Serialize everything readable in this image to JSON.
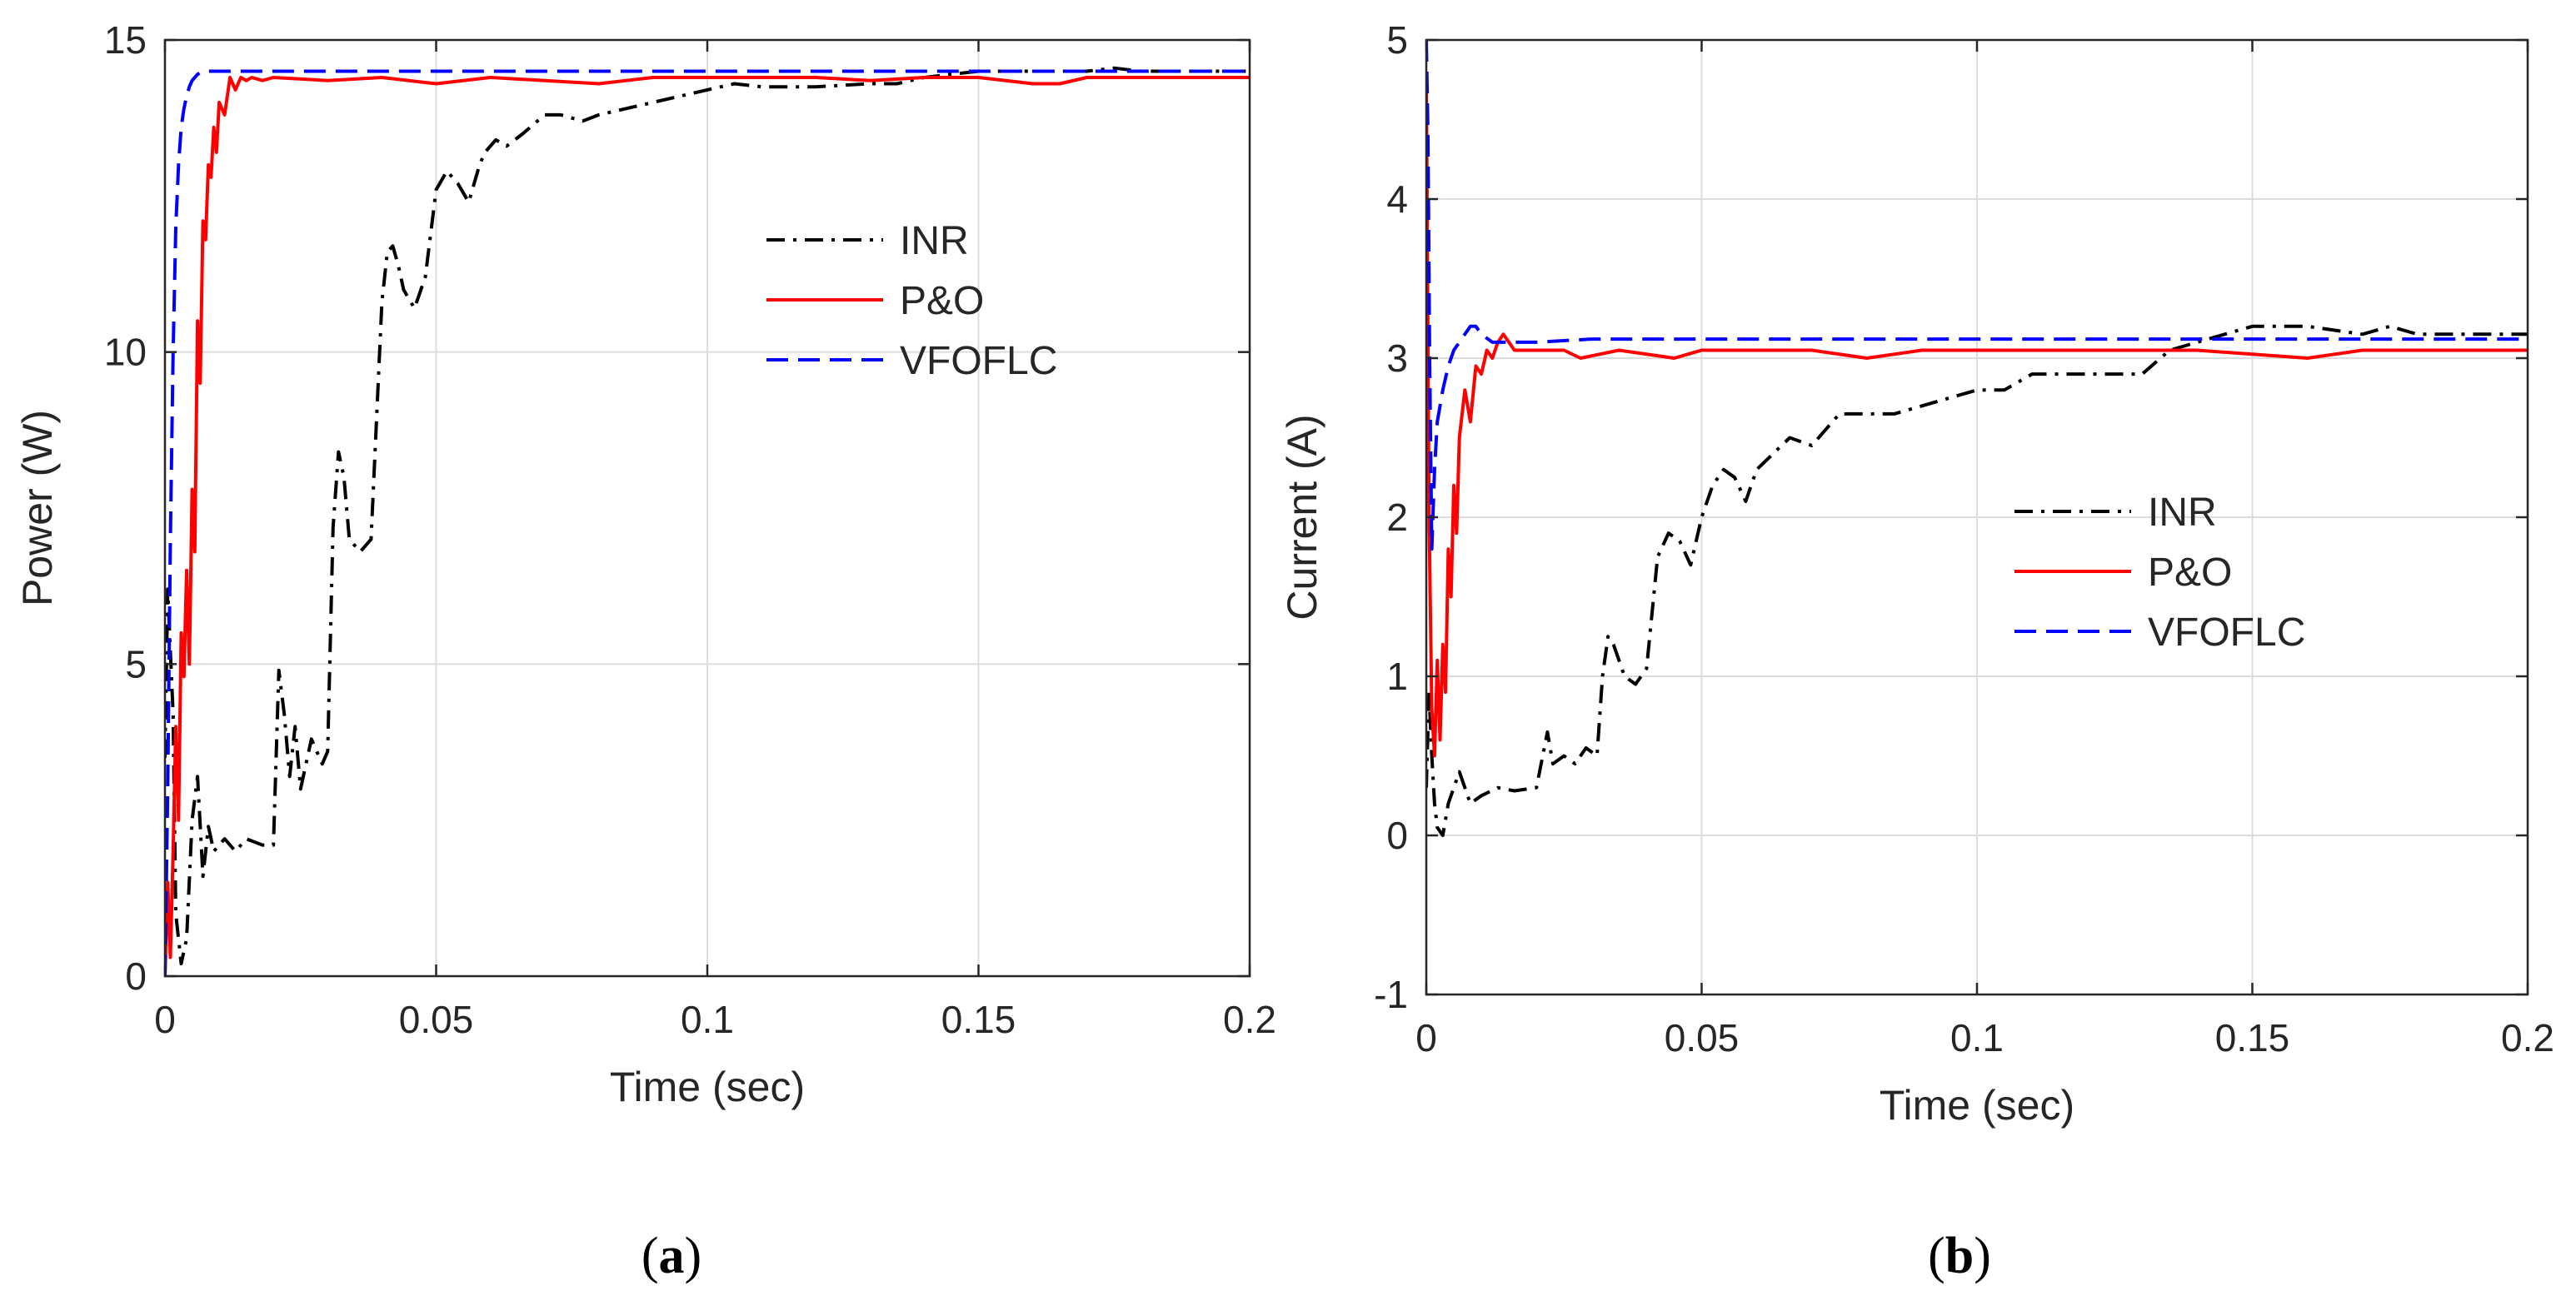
{
  "chart_data": [
    {
      "type": "line",
      "panel_label": "a",
      "xlabel": "Time (sec)",
      "ylabel": "Power (W)",
      "xlim": [
        0,
        0.2
      ],
      "ylim": [
        0,
        15
      ],
      "xticks": [
        0,
        0.05,
        0.1,
        0.15,
        0.2
      ],
      "xtick_labels": [
        "0",
        "0.05",
        "0.1",
        "0.15",
        "0.2"
      ],
      "yticks": [
        0,
        5,
        10,
        15
      ],
      "ytick_labels": [
        "0",
        "5",
        "10",
        "15"
      ],
      "grid": true,
      "legend_position": "upper-right",
      "series": [
        {
          "name": "INR",
          "color": "#000000",
          "style": "dashdot",
          "x": [
            0,
            0.0005,
            0.001,
            0.0015,
            0.002,
            0.003,
            0.004,
            0.005,
            0.006,
            0.007,
            0.008,
            0.009,
            0.011,
            0.013,
            0.015,
            0.018,
            0.02,
            0.021,
            0.022,
            0.023,
            0.024,
            0.025,
            0.027,
            0.029,
            0.03,
            0.031,
            0.032,
            0.033,
            0.034,
            0.036,
            0.038,
            0.04,
            0.041,
            0.042,
            0.043,
            0.044,
            0.046,
            0.048,
            0.05,
            0.052,
            0.054,
            0.056,
            0.058,
            0.059,
            0.061,
            0.063,
            0.066,
            0.07,
            0.073,
            0.077,
            0.08,
            0.085,
            0.09,
            0.095,
            0.1,
            0.105,
            0.11,
            0.12,
            0.13,
            0.135,
            0.14,
            0.145,
            0.15,
            0.16,
            0.17,
            0.175,
            0.18,
            0.2
          ],
          "values": [
            3.5,
            6.2,
            5.2,
            4.2,
            1.0,
            0.2,
            0.6,
            2.5,
            3.2,
            1.6,
            2.4,
            2.0,
            2.2,
            2.0,
            2.2,
            2.1,
            2.1,
            4.9,
            4.2,
            3.2,
            4.0,
            3.0,
            3.8,
            3.4,
            3.6,
            7.2,
            8.4,
            8.0,
            7.0,
            6.8,
            7.0,
            10.8,
            11.6,
            11.7,
            11.4,
            11.0,
            10.7,
            11.2,
            12.6,
            12.9,
            12.7,
            12.4,
            13.0,
            13.2,
            13.4,
            13.3,
            13.5,
            13.8,
            13.8,
            13.7,
            13.8,
            13.9,
            14.0,
            14.1,
            14.2,
            14.3,
            14.25,
            14.25,
            14.3,
            14.3,
            14.4,
            14.45,
            14.5,
            14.5,
            14.5,
            14.55,
            14.5,
            14.5
          ]
        },
        {
          "name": "P&O",
          "color": "#ff0000",
          "style": "solid",
          "x": [
            0,
            0.0005,
            0.001,
            0.0015,
            0.002,
            0.0025,
            0.003,
            0.0035,
            0.004,
            0.0045,
            0.005,
            0.0055,
            0.006,
            0.0065,
            0.007,
            0.0075,
            0.008,
            0.0085,
            0.009,
            0.0095,
            0.01,
            0.011,
            0.012,
            0.013,
            0.014,
            0.015,
            0.016,
            0.018,
            0.02,
            0.03,
            0.04,
            0.05,
            0.06,
            0.07,
            0.08,
            0.09,
            0.1,
            0.11,
            0.12,
            0.13,
            0.14,
            0.15,
            0.16,
            0.165,
            0.17,
            0.18,
            0.19,
            0.2
          ],
          "values": [
            0,
            1.5,
            0.3,
            2.0,
            4.0,
            2.5,
            5.5,
            4.8,
            6.5,
            5.0,
            7.8,
            6.8,
            10.5,
            9.5,
            12.1,
            11.8,
            13.0,
            12.8,
            13.6,
            13.2,
            14.0,
            13.8,
            14.4,
            14.2,
            14.4,
            14.35,
            14.4,
            14.35,
            14.4,
            14.35,
            14.4,
            14.3,
            14.4,
            14.35,
            14.3,
            14.4,
            14.4,
            14.4,
            14.4,
            14.35,
            14.4,
            14.4,
            14.3,
            14.3,
            14.4,
            14.4,
            14.4,
            14.4
          ]
        },
        {
          "name": "VFOFLC",
          "color": "#0000ff",
          "style": "dashed",
          "x": [
            0,
            0.0005,
            0.001,
            0.0015,
            0.002,
            0.0025,
            0.003,
            0.0035,
            0.004,
            0.0045,
            0.005,
            0.006,
            0.007,
            0.008,
            0.01,
            0.012,
            0.015,
            0.02,
            0.05,
            0.1,
            0.15,
            0.2
          ],
          "values": [
            0,
            3.0,
            7.0,
            10.0,
            12.0,
            13.0,
            13.6,
            13.9,
            14.1,
            14.25,
            14.35,
            14.45,
            14.5,
            14.5,
            14.5,
            14.5,
            14.5,
            14.5,
            14.5,
            14.5,
            14.5,
            14.5
          ]
        }
      ]
    },
    {
      "type": "line",
      "panel_label": "b",
      "xlabel": "Time (sec)",
      "ylabel": "Current (A)",
      "xlim": [
        0,
        0.2
      ],
      "ylim": [
        -1,
        5
      ],
      "xticks": [
        0,
        0.05,
        0.1,
        0.15,
        0.2
      ],
      "xtick_labels": [
        "0",
        "0.05",
        "0.1",
        "0.15",
        "0.2"
      ],
      "yticks": [
        -1,
        0,
        1,
        2,
        3,
        4,
        5
      ],
      "ytick_labels": [
        "-1",
        "0",
        "1",
        "2",
        "3",
        "4",
        "5"
      ],
      "grid": true,
      "legend_position": "center-right",
      "series": [
        {
          "name": "INR",
          "color": "#000000",
          "style": "dashdot",
          "x": [
            0,
            0.0005,
            0.001,
            0.0015,
            0.002,
            0.003,
            0.004,
            0.005,
            0.006,
            0.007,
            0.008,
            0.01,
            0.013,
            0.016,
            0.02,
            0.022,
            0.023,
            0.025,
            0.027,
            0.029,
            0.031,
            0.032,
            0.033,
            0.034,
            0.036,
            0.038,
            0.04,
            0.042,
            0.044,
            0.046,
            0.048,
            0.05,
            0.052,
            0.054,
            0.056,
            0.058,
            0.06,
            0.063,
            0.066,
            0.07,
            0.075,
            0.08,
            0.085,
            0.09,
            0.095,
            0.1,
            0.105,
            0.11,
            0.12,
            0.13,
            0.135,
            0.14,
            0.145,
            0.15,
            0.16,
            0.17,
            0.175,
            0.18,
            0.2
          ],
          "values": [
            0.3,
            0.9,
            0.5,
            0.2,
            0.05,
            0.0,
            0.2,
            0.3,
            0.4,
            0.3,
            0.2,
            0.25,
            0.3,
            0.28,
            0.3,
            0.65,
            0.45,
            0.5,
            0.45,
            0.55,
            0.5,
            1.0,
            1.25,
            1.2,
            1.0,
            0.95,
            1.05,
            1.75,
            1.9,
            1.85,
            1.7,
            2.0,
            2.2,
            2.3,
            2.25,
            2.1,
            2.3,
            2.4,
            2.5,
            2.45,
            2.65,
            2.65,
            2.65,
            2.7,
            2.75,
            2.8,
            2.8,
            2.9,
            2.9,
            2.9,
            3.05,
            3.1,
            3.15,
            3.2,
            3.2,
            3.15,
            3.2,
            3.15,
            3.15
          ]
        },
        {
          "name": "P&O",
          "color": "#ff0000",
          "style": "solid",
          "x": [
            0,
            0.0005,
            0.001,
            0.0015,
            0.002,
            0.0025,
            0.003,
            0.0035,
            0.004,
            0.0045,
            0.005,
            0.0055,
            0.006,
            0.007,
            0.008,
            0.009,
            0.01,
            0.011,
            0.012,
            0.013,
            0.014,
            0.016,
            0.02,
            0.025,
            0.028,
            0.035,
            0.045,
            0.05,
            0.07,
            0.08,
            0.09,
            0.1,
            0.12,
            0.14,
            0.16,
            0.17,
            0.18,
            0.2
          ],
          "values": [
            4.8,
            2.0,
            0.8,
            0.5,
            1.1,
            0.6,
            1.2,
            0.9,
            1.8,
            1.5,
            2.2,
            1.9,
            2.5,
            2.8,
            2.6,
            2.95,
            2.9,
            3.05,
            3.0,
            3.1,
            3.15,
            3.05,
            3.05,
            3.05,
            3.0,
            3.05,
            3.0,
            3.05,
            3.05,
            3.0,
            3.05,
            3.05,
            3.05,
            3.05,
            3.0,
            3.05,
            3.05,
            3.05
          ]
        },
        {
          "name": "VFOFLC",
          "color": "#0000ff",
          "style": "dashed",
          "x": [
            0,
            0.0003,
            0.0006,
            0.001,
            0.0015,
            0.002,
            0.003,
            0.004,
            0.005,
            0.006,
            0.007,
            0.008,
            0.009,
            0.01,
            0.012,
            0.015,
            0.02,
            0.03,
            0.05,
            0.08,
            0.1,
            0.12,
            0.14,
            0.16,
            0.18,
            0.2
          ],
          "values": [
            5.0,
            4.4,
            3.0,
            1.8,
            2.3,
            2.6,
            2.8,
            2.95,
            3.05,
            3.1,
            3.15,
            3.2,
            3.2,
            3.15,
            3.1,
            3.1,
            3.1,
            3.12,
            3.12,
            3.12,
            3.12,
            3.12,
            3.12,
            3.12,
            3.12,
            3.12
          ]
        }
      ]
    }
  ],
  "captions": [
    {
      "open": "(",
      "letter": "a",
      "close": ")"
    },
    {
      "open": "(",
      "letter": "b",
      "close": ")"
    }
  ]
}
